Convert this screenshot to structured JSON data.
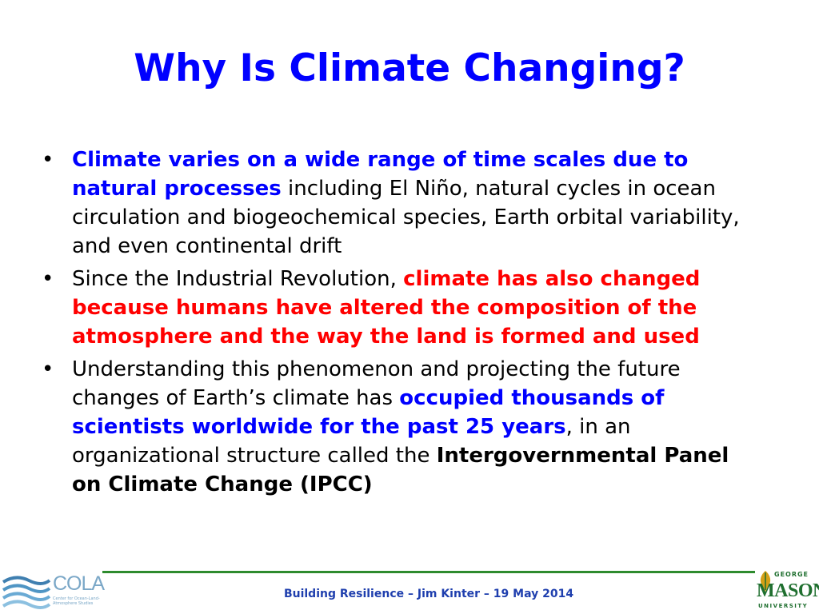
{
  "slide": {
    "title": "Why Is Climate Changing?",
    "bullets": [
      {
        "segments": [
          {
            "text": "Climate varies on a wide range of time scales due to natural processes",
            "style": "blue-bold"
          },
          {
            "text": " including El Niño, natural cycles in ocean circulation and biogeochemical species, Earth orbital variability, and even continental drift",
            "style": "plain"
          }
        ]
      },
      {
        "segments": [
          {
            "text": "Since the Industrial Revolution, ",
            "style": "plain"
          },
          {
            "text": "climate has also changed because humans have altered the composition of the atmosphere and the way the land is formed and used",
            "style": "red-bold"
          }
        ]
      },
      {
        "segments": [
          {
            "text": "Understanding this phenomenon and projecting the future changes of Earth’s climate has ",
            "style": "plain"
          },
          {
            "text": "occupied thousands of scientists worldwide for the past 25 years",
            "style": "blue-bold"
          },
          {
            "text": ", in an organizational structure called the ",
            "style": "plain"
          },
          {
            "text": "Intergovernmental Panel on Climate Change (IPCC)",
            "style": "black-bold"
          }
        ]
      }
    ],
    "bullet_glyph": "•"
  },
  "footer": {
    "text": "Building Resilience – Jim Kinter – 19 May 2014",
    "cola_logo": {
      "word": "COLA",
      "subtitle": "Center for Ocean-Land-Atmosphere Studies"
    },
    "mason_logo": {
      "top": "GEORGE",
      "name": "MASON",
      "bottom": "UNIVERSITY"
    }
  },
  "colors": {
    "title": "#0000ff",
    "emphasis_blue": "#0000ff",
    "emphasis_red": "#ff0000",
    "footer_rule": "#2e8b2e",
    "footer_text": "#1f3fae",
    "mason_green": "#1f6f2f"
  }
}
